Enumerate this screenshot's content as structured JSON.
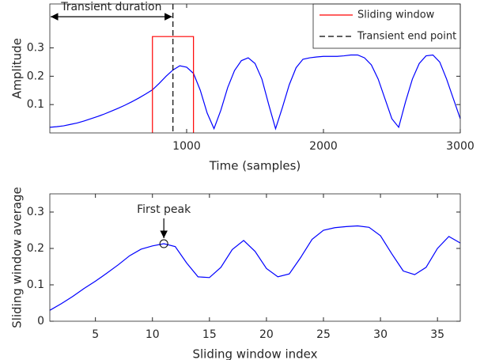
{
  "chart_data": [
    {
      "type": "line",
      "xlabel": "Time (samples)",
      "ylabel": "Amplitude",
      "x": [
        0,
        50,
        100,
        150,
        200,
        250,
        300,
        350,
        400,
        450,
        500,
        550,
        600,
        650,
        700,
        750,
        800,
        850,
        900,
        950,
        1000,
        1050,
        1100,
        1150,
        1200,
        1250,
        1300,
        1350,
        1400,
        1450,
        1500,
        1550,
        1600,
        1650,
        1700,
        1750,
        1800,
        1850,
        1900,
        1950,
        2000,
        2050,
        2100,
        2150,
        2200,
        2250,
        2300,
        2350,
        2400,
        2450,
        2500,
        2550,
        2600,
        2650,
        2700,
        2750,
        2800,
        2850,
        2900,
        2950,
        3000
      ],
      "values": [
        0.02,
        0.022,
        0.025,
        0.03,
        0.035,
        0.042,
        0.05,
        0.058,
        0.067,
        0.077,
        0.087,
        0.098,
        0.11,
        0.123,
        0.137,
        0.152,
        0.175,
        0.2,
        0.222,
        0.237,
        0.232,
        0.21,
        0.15,
        0.07,
        0.015,
        0.08,
        0.16,
        0.22,
        0.255,
        0.265,
        0.245,
        0.19,
        0.1,
        0.015,
        0.09,
        0.17,
        0.23,
        0.26,
        0.265,
        0.268,
        0.27,
        0.27,
        0.27,
        0.272,
        0.275,
        0.275,
        0.265,
        0.24,
        0.19,
        0.12,
        0.05,
        0.02,
        0.11,
        0.19,
        0.245,
        0.272,
        0.275,
        0.25,
        0.19,
        0.12,
        0.05
      ],
      "color": "#0000ff",
      "xlim": [
        0,
        3000
      ],
      "xticks": [
        1000,
        2000,
        3000
      ],
      "ylim": [
        0,
        0.455
      ],
      "yticks": [
        0.1,
        0.2,
        0.3
      ],
      "window": {
        "name": "Sliding window",
        "color": "#ff0000",
        "x": [
          750,
          1050
        ],
        "top": 0.34
      },
      "end_point": {
        "name": "Transient end point",
        "color": "#000000",
        "x": 900
      },
      "duration": {
        "text": "Transient duration",
        "x": [
          0,
          900
        ],
        "y": 0.41
      },
      "legend": "upper right"
    },
    {
      "type": "line",
      "xlabel": "Sliding window index",
      "ylabel": "Sliding window average",
      "x": [
        1,
        2,
        3,
        4,
        5,
        6,
        7,
        8,
        9,
        10,
        11,
        12,
        13,
        14,
        15,
        16,
        17,
        18,
        19,
        20,
        21,
        22,
        23,
        24,
        25,
        26,
        27,
        28,
        29,
        30,
        31,
        32,
        33,
        34,
        35,
        36,
        37
      ],
      "values": [
        0.03,
        0.048,
        0.068,
        0.09,
        0.11,
        0.132,
        0.155,
        0.18,
        0.198,
        0.207,
        0.213,
        0.205,
        0.16,
        0.122,
        0.12,
        0.148,
        0.197,
        0.222,
        0.192,
        0.145,
        0.122,
        0.13,
        0.175,
        0.225,
        0.25,
        0.257,
        0.26,
        0.262,
        0.258,
        0.235,
        0.185,
        0.138,
        0.128,
        0.148,
        0.2,
        0.233,
        0.215
      ],
      "color": "#0000ff",
      "xlim": [
        1,
        37
      ],
      "xticks": [
        5,
        10,
        15,
        20,
        25,
        30,
        35
      ],
      "ylim": [
        0,
        0.35
      ],
      "yticks": [
        0,
        0.1,
        0.2,
        0.3
      ],
      "peak": {
        "text": "First peak",
        "x": 11,
        "y": 0.213
      }
    }
  ]
}
